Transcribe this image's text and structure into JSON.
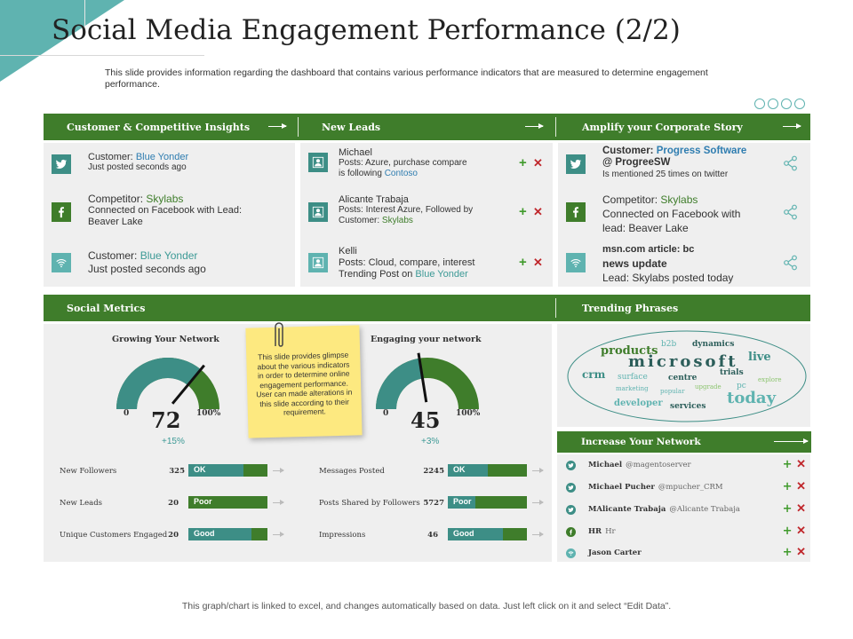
{
  "title": "Social Media Engagement Performance (2/2)",
  "subtitle": "This slide provides information regarding the dashboard that contains various performance indicators that are measured to determine engagement performance.",
  "colors": {
    "green": "#3f7d2b",
    "teal": "#3d8e86",
    "light_teal": "#5fb3b0",
    "note_yellow": "#fde980"
  },
  "sections": {
    "customer_insights": "Customer & Competitive Insights",
    "new_leads": "New Leads",
    "amplify": "Amplify your Corporate Story",
    "social_metrics": "Social Metrics",
    "trending": "Trending Phrases",
    "increase_network": "Increase Your Network"
  },
  "insights": [
    {
      "icon": "twitter-icon",
      "label": "Customer:",
      "name": "Blue Yonder",
      "line2": "Just posted seconds ago"
    },
    {
      "icon": "facebook-icon",
      "label": "Competitor:",
      "name": "Skylabs",
      "line2": "Connected on Facebook with Lead:",
      "line3": "Beaver Lake"
    },
    {
      "icon": "wifi-icon",
      "label": "Customer:",
      "name": "Blue Yonder",
      "line2": "Just posted seconds ago"
    }
  ],
  "leads": [
    {
      "icon": "person-icon",
      "name": "Michael",
      "line1": "Posts: Azure, purchase compare",
      "line2_pre": "is following ",
      "line2_link": "Contoso"
    },
    {
      "icon": "person-icon",
      "name": "Alicante Trabaja",
      "line1": "Posts: Interest Azure,  Followed by",
      "line2_pre": "Customer: ",
      "line2_link": "Skylabs"
    },
    {
      "icon": "person-icon",
      "name": "Kelli",
      "line1": "Posts: Cloud, compare, interest",
      "line2_pre": "Trending Post on ",
      "line2_link": "Blue Yonder"
    }
  ],
  "amplify_items": [
    {
      "icon": "twitter-icon",
      "pre": "Customer: ",
      "link": "Progress Software",
      "line2": "@ ProgreeSW",
      "line3": "Is mentioned  25 times  on twitter"
    },
    {
      "icon": "facebook-icon",
      "pre": "Competitor:  ",
      "link": "Skylabs",
      "line2": "Connected  on Facebook with",
      "line3": "lead: Beaver  Lake"
    },
    {
      "icon": "wifi-icon",
      "line1": "msn.com  article: bc",
      "line2": "news update",
      "line3": "Lead:  Skylabs posted today"
    }
  ],
  "gauges": [
    {
      "title": "Growing Your Network",
      "value": 72,
      "min": "0",
      "max": "100%",
      "delta": "+15%"
    },
    {
      "title": "Engaging your network",
      "value": 45,
      "min": "0",
      "max": "100%",
      "delta": "+3%"
    }
  ],
  "note": "This slide provides glimpse about the various indicators in order to determine online engagement performance. User can made alterations in this slide according to their requirement.",
  "metrics_left": [
    {
      "label": "New Followers",
      "value": "325",
      "status": "OK",
      "fill": 0.7
    },
    {
      "label": "New Leads",
      "value": "20",
      "status": "Poor",
      "fill": 0.0
    },
    {
      "label": "Unique Customers Engaged",
      "value": "20",
      "status": "Good",
      "fill": 0.8
    }
  ],
  "metrics_right": [
    {
      "label": "Messages  Posted",
      "value": "2245",
      "status": "OK",
      "fill": 0.5
    },
    {
      "label": "Posts Shared  by Followers",
      "value": "5727",
      "status": "Poor",
      "fill": 0.35
    },
    {
      "label": "Impressions",
      "value": "46",
      "status": "Good",
      "fill": 0.7
    }
  ],
  "cloud": {
    "products": "products",
    "b2b": "b2b",
    "dynamics": "dynamics",
    "microsoft": "microsoft",
    "live": "live",
    "crm": "crm",
    "surface": "surface",
    "centre": "centre",
    "trials": "trials",
    "explore": "explore",
    "marketing": "marketing",
    "popular": "popular",
    "upgrade": "upgrade",
    "pc": "pc",
    "today": "today",
    "developer": "developer",
    "services": "services"
  },
  "network": [
    {
      "icon": "twitter-icon",
      "name": "Michael",
      "handle": "@magentoserver"
    },
    {
      "icon": "twitter-icon",
      "name": "Michael Pucher",
      "handle": "@mpucher_CRM"
    },
    {
      "icon": "twitter-icon",
      "name": "MAlicante Trabaja",
      "handle": "@Alicante Trabaja"
    },
    {
      "icon": "facebook-icon",
      "name": "HR",
      "handle": "Hr"
    },
    {
      "icon": "wifi-icon",
      "name": "Jason Carter",
      "handle": ""
    }
  ],
  "actions": {
    "plus": "+",
    "cross": "✕"
  },
  "footer": "This graph/chart is linked to excel, and changes automatically based on data. Just left click on it and select “Edit Data”."
}
